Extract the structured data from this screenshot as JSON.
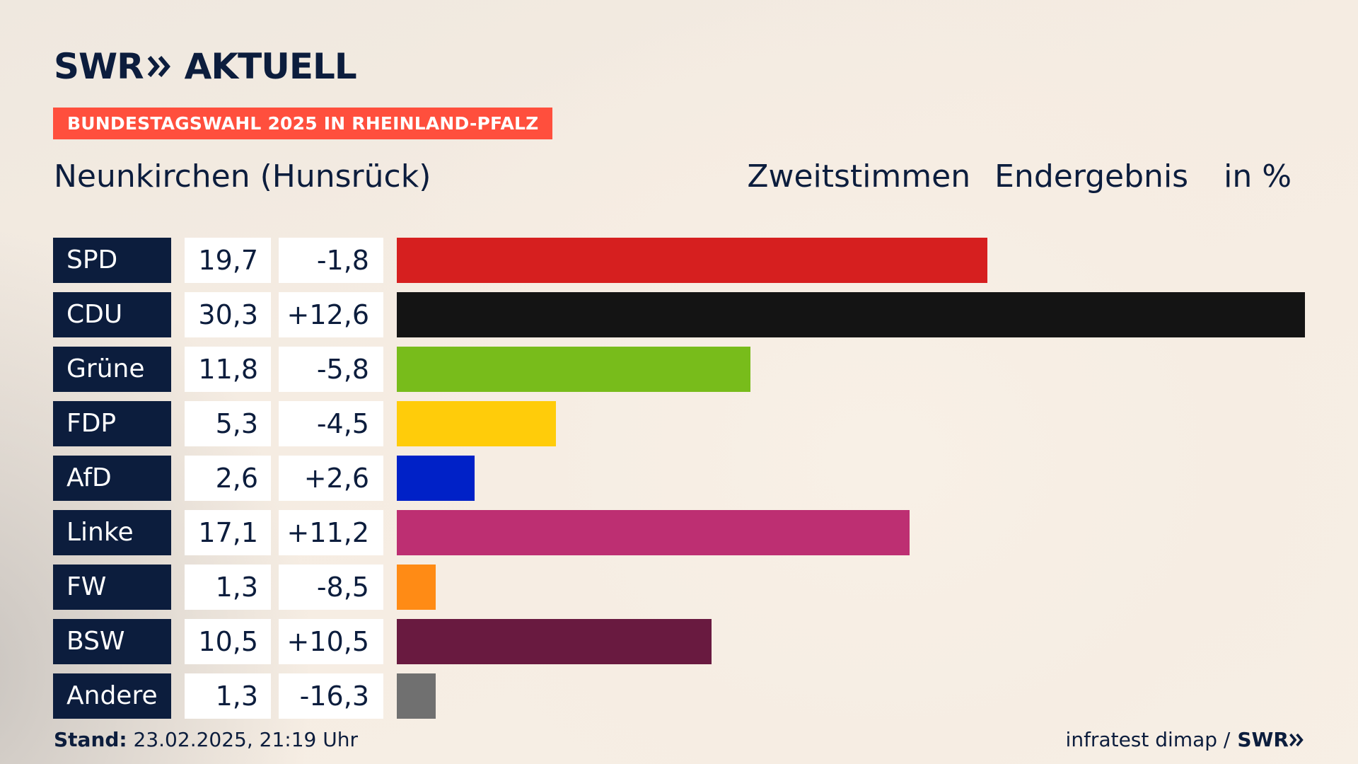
{
  "brand": {
    "logo_swr": "SWR",
    "logo_chevron": "chevron-double-right-icon",
    "logo_aktuell": "AKTUELL",
    "accent_color": "#ff4f3d",
    "navy_color": "#0c1d3d"
  },
  "banner": "BUNDESTAGSWAHL 2025 IN RHEINLAND-PFALZ",
  "header": {
    "location": "Neunkirchen (Hunsrück)",
    "vote_type": "Zweitstimmen",
    "result_type": "Endergebnis",
    "unit": "in %"
  },
  "chart_data": {
    "type": "bar",
    "orientation": "horizontal",
    "title": "Neunkirchen (Hunsrück) – Zweitstimmen Endergebnis",
    "unit": "in %",
    "xlim": [
      0,
      30.3
    ],
    "categories": [
      "SPD",
      "CDU",
      "Grüne",
      "FDP",
      "AfD",
      "Linke",
      "FW",
      "BSW",
      "Andere"
    ],
    "values": [
      19.7,
      30.3,
      11.8,
      5.3,
      2.6,
      17.1,
      1.3,
      10.5,
      1.3
    ],
    "value_labels": [
      "19,7",
      "30,3",
      "11,8",
      "5,3",
      "2,6",
      "17,1",
      "1,3",
      "10,5",
      "1,3"
    ],
    "diff_labels": [
      "-1,8",
      "+12,6",
      "-5,8",
      "-4,5",
      "+2,6",
      "+11,2",
      "-8,5",
      "+10,5",
      "-16,3"
    ],
    "colors": [
      "#d61f1f",
      "#141414",
      "#78bc1b",
      "#ffcc0a",
      "#0021c7",
      "#bd2f72",
      "#ff8b15",
      "#691a40",
      "#707070"
    ]
  },
  "footer": {
    "stand_label": "Stand:",
    "stand_value": "23.02.2025, 21:19 Uhr",
    "source": "infratest dimap /",
    "source_logo": "SWR"
  }
}
